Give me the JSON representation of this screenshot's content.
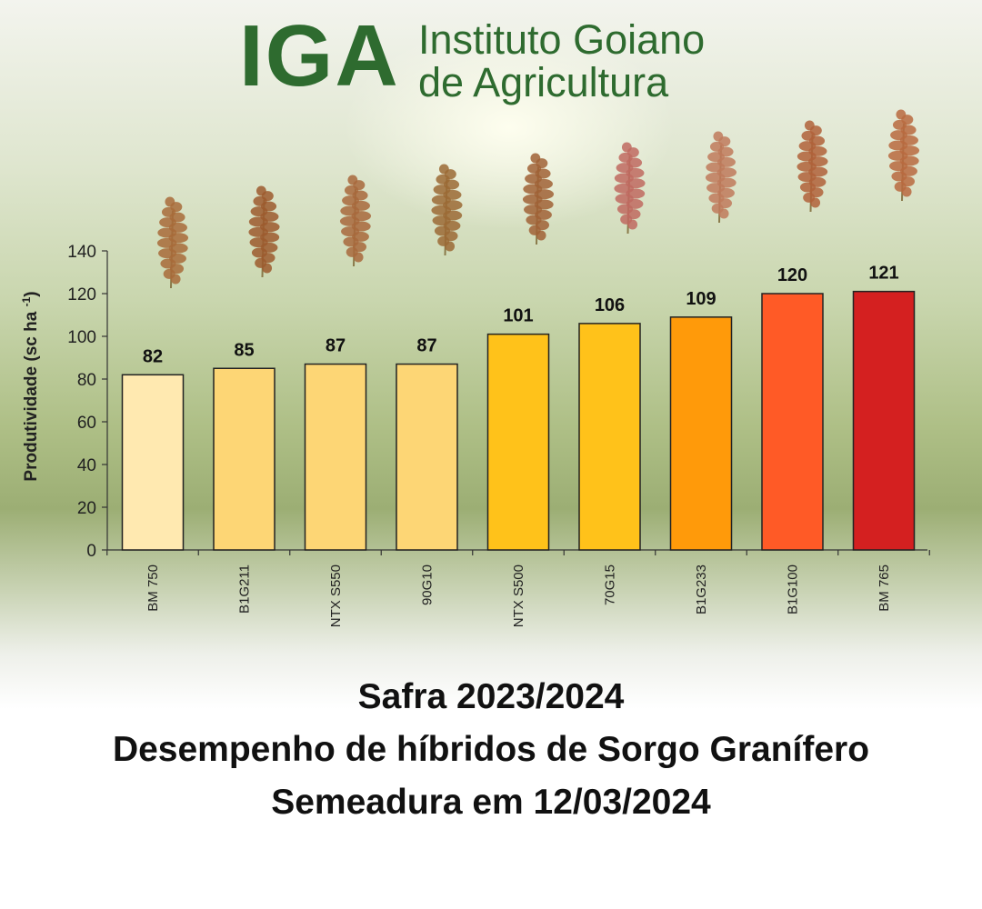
{
  "header": {
    "logo_letters": "IGA",
    "org_line1": "Instituto Goiano",
    "org_line2": "de Agricultura"
  },
  "chart_data": {
    "type": "bar",
    "title": "",
    "xlabel": "",
    "ylabel": "Produtividade (sc ha-1)",
    "ylim": [
      0,
      140
    ],
    "yticks": [
      0,
      20,
      40,
      60,
      80,
      100,
      120,
      140
    ],
    "grid": false,
    "categories": [
      "BM 750",
      "B1G211",
      "NTX S550",
      "90G10",
      "NTX S500",
      "70G15",
      "B1G233",
      "B1G100",
      "BM 765"
    ],
    "values": [
      82,
      85,
      87,
      87,
      101,
      106,
      109,
      120,
      121
    ],
    "data_labels": [
      "82",
      "85",
      "87",
      "87",
      "101",
      "106",
      "109",
      "120",
      "121"
    ],
    "bar_colors": [
      "#ffe9b0",
      "#fdd675",
      "#fdd675",
      "#fdd675",
      "#ffc21a",
      "#ffc21a",
      "#ff9a0a",
      "#ff5a26",
      "#d42020"
    ],
    "bar_edge_color": "#222222"
  },
  "captions": {
    "line1": "Safra 2023/2024",
    "line2": "Desempenho de híbridos de Sorgo Granífero",
    "line3": "Semeadura em 12/03/2024"
  }
}
